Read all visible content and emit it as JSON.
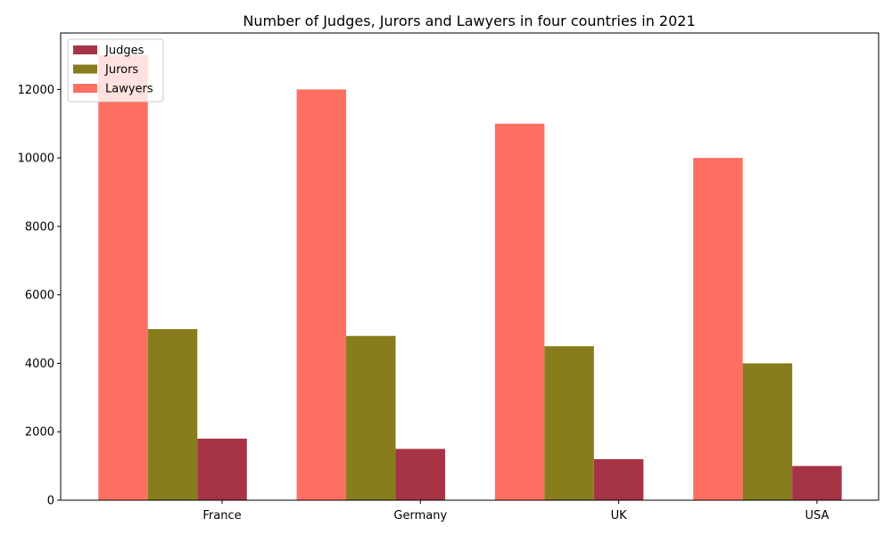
{
  "chart_data": {
    "type": "bar",
    "title": "Number of Judges, Jurors and Lawyers in four countries in 2021",
    "xlabel": "",
    "ylabel": "",
    "categories": [
      "France",
      "Germany",
      "UK",
      "USA"
    ],
    "series": [
      {
        "name": "Judges",
        "values": [
          1800,
          1500,
          1200,
          1000
        ],
        "color": "#a63446"
      },
      {
        "name": "Jurors",
        "values": [
          5000,
          4800,
          4500,
          4000
        ],
        "color": "#877d1c"
      },
      {
        "name": "Lawyers",
        "values": [
          13000,
          12000,
          11000,
          10000
        ],
        "color": "#ff6f61"
      }
    ],
    "draw_order": [
      "Lawyers",
      "Jurors",
      "Judges"
    ],
    "ylim": [
      0,
      13650
    ],
    "yticks": [
      0,
      2000,
      4000,
      6000,
      8000,
      10000,
      12000
    ],
    "grid": false,
    "legend_position": "top-left"
  }
}
